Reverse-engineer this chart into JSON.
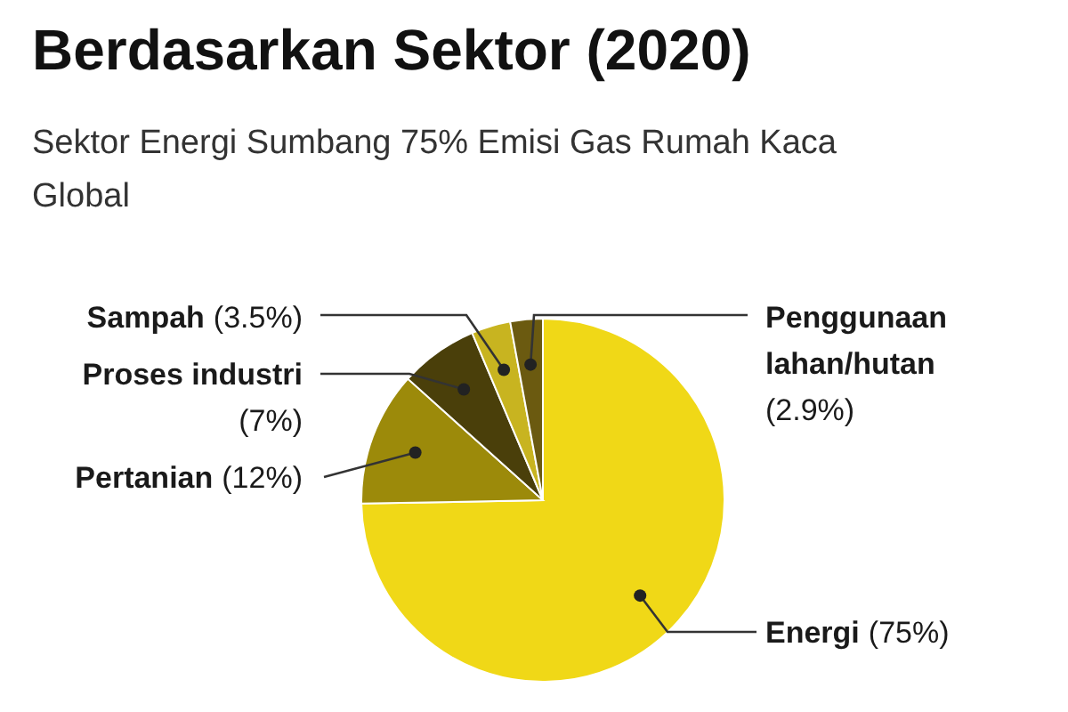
{
  "chart_data": {
    "type": "pie",
    "title": "Berdasarkan Sektor (2020)",
    "subtitle": "Sektor Energi Sumbang 75% Emisi Gas Rumah Kaca Global",
    "categories": [
      "Energi",
      "Pertanian",
      "Proses industri",
      "Sampah",
      "Penggunaan lahan/hutan"
    ],
    "values": [
      75,
      12,
      7,
      3.5,
      2.9
    ],
    "colors": [
      "#f0d817",
      "#9c8a0a",
      "#4a3f0a",
      "#c8b420",
      "#6b5a10"
    ],
    "value_labels": [
      "(75%)",
      "(12%)",
      "(7%)",
      "(3.5%)",
      "(2.9%)"
    ]
  }
}
